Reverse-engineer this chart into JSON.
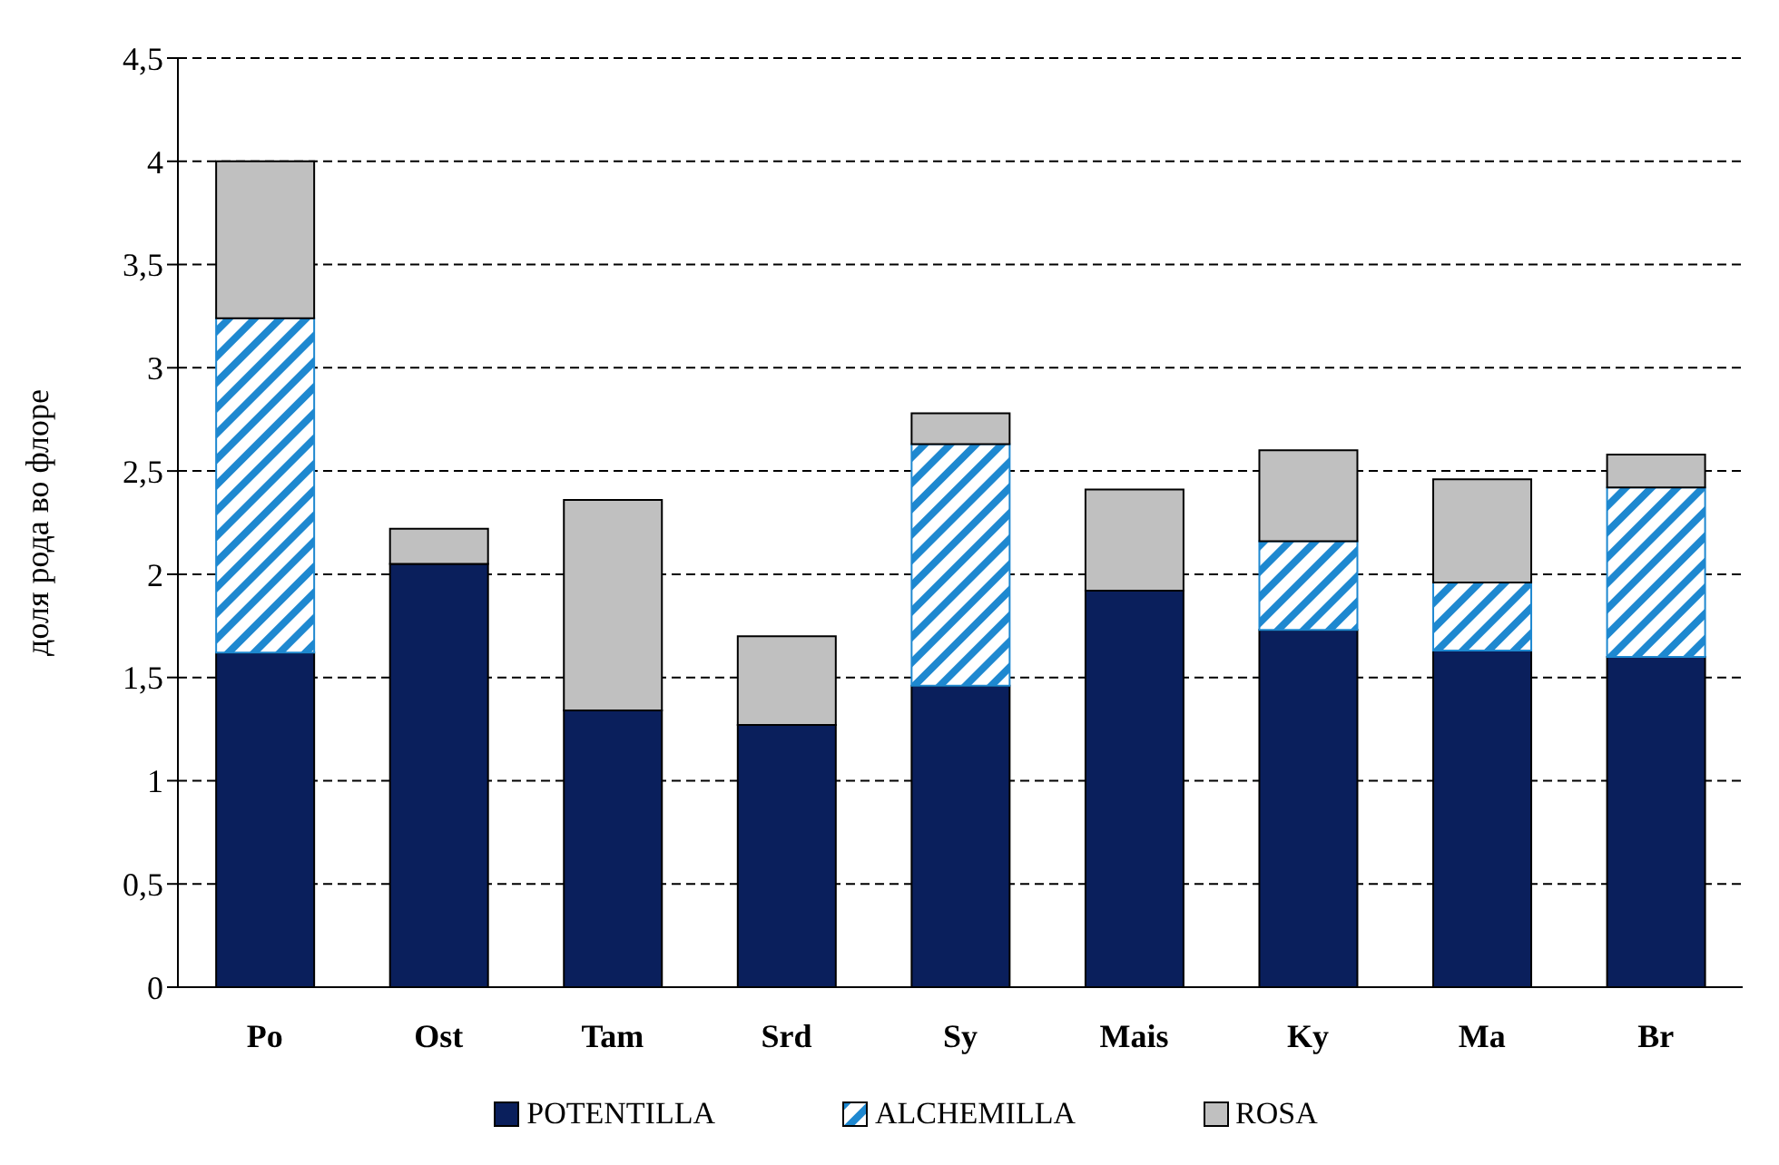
{
  "chart_data": {
    "type": "bar",
    "stacked": true,
    "ylabel": "доля рода во флоре",
    "categories": [
      "Po",
      "Ost",
      "Tam",
      "Srd",
      "Sy",
      "Mais",
      "Ky",
      "Ma",
      "Br"
    ],
    "series": [
      {
        "name": "POTENTILLA",
        "color": "#0a1f5c",
        "values": [
          1.62,
          2.05,
          1.34,
          1.27,
          1.46,
          1.92,
          1.73,
          1.63,
          1.6
        ]
      },
      {
        "name": "ALCHEMILLA",
        "color": "#1e88d0",
        "values": [
          1.62,
          0,
          0,
          0,
          1.17,
          0,
          0.43,
          0.33,
          0.82
        ]
      },
      {
        "name": "ROSA",
        "color": "#c0c0c0",
        "values": [
          0.76,
          0.17,
          1.02,
          0.43,
          0.15,
          0.49,
          0.44,
          0.5,
          0.16
        ]
      }
    ],
    "ylim": [
      0,
      4.5
    ],
    "yticks": [
      {
        "value": 0,
        "label": "0"
      },
      {
        "value": 0.5,
        "label": "0,5"
      },
      {
        "value": 1,
        "label": "1"
      },
      {
        "value": 1.5,
        "label": "1,5"
      },
      {
        "value": 2,
        "label": "2"
      },
      {
        "value": 2.5,
        "label": "2,5"
      },
      {
        "value": 3,
        "label": "3"
      },
      {
        "value": 3.5,
        "label": "3,5"
      },
      {
        "value": 4,
        "label": "4"
      },
      {
        "value": 4.5,
        "label": "4,5"
      }
    ],
    "grid": "y",
    "legend": "bottom"
  }
}
